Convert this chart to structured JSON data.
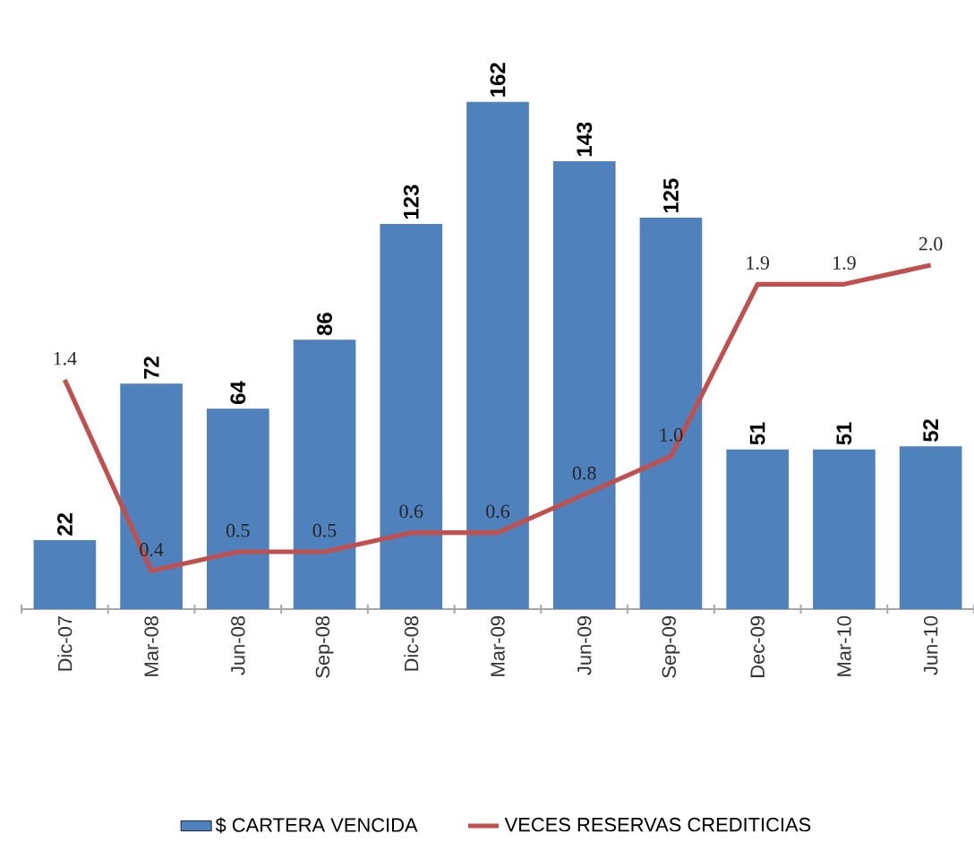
{
  "chart_data": {
    "type": "bar",
    "categories": [
      "Dic-07",
      "Mar-08",
      "Jun-08",
      "Sep-08",
      "Dic-08",
      "Mar-09",
      "Jun-09",
      "Sep-09",
      "Dec-09",
      "Mar-10",
      "Jun-10"
    ],
    "series": [
      {
        "name": "$ CARTERA VENCIDA",
        "color": "#4f81bd",
        "values": [
          22,
          72,
          64,
          86,
          123,
          162,
          143,
          125,
          51,
          51,
          52
        ],
        "value_labels": [
          "22",
          "72",
          "64",
          "86",
          "123",
          "162",
          "143",
          "125",
          "51",
          "51",
          "52"
        ]
      },
      {
        "name": "VECES RESERVAS CREDITICIAS",
        "type": "line",
        "axis": "y2",
        "color": "#c0504d",
        "values": [
          1.4,
          0.4,
          0.5,
          0.5,
          0.6,
          0.6,
          0.8,
          1.0,
          1.9,
          1.9,
          2.0
        ],
        "value_labels": [
          "1.4",
          "0.4",
          "0.5",
          "0.5",
          "0.6",
          "0.6",
          "0.8",
          "1.0",
          "1.9",
          "1.9",
          "2.0"
        ]
      }
    ],
    "legend": "bottom"
  }
}
